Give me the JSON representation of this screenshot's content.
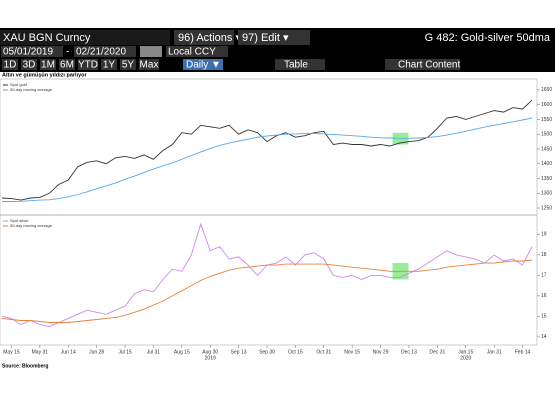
{
  "toolbar": {
    "security": "XAU BGN Curncy",
    "actions": "96) Actions ▾",
    "edit": "97) Edit ▾",
    "function": "G 482: Gold-silver 50dma",
    "start": "05/01/2019",
    "dash": "-",
    "end": "02/21/2020",
    "currency": "Local CCY",
    "periods": [
      "1D",
      "3D",
      "1M",
      "6M",
      "YTD",
      "1Y",
      "5Y",
      "Max"
    ],
    "frequency": "Daily ▼",
    "table": "Table",
    "content": "Chart Content"
  },
  "source": "Source: Bloomberg",
  "chart_data": [
    {
      "type": "line",
      "title": "Altın ve gümüşün yıldızı parlıyor",
      "ylim": [
        1240,
        1670
      ],
      "yticks": [
        1250,
        1300,
        1350,
        1400,
        1450,
        1500,
        1550,
        1600,
        1650
      ],
      "series": [
        {
          "name": "Spot gold",
          "color": "#333333",
          "values": [
            1284,
            1282,
            1277,
            1284,
            1286,
            1300,
            1330,
            1345,
            1390,
            1405,
            1410,
            1400,
            1420,
            1425,
            1418,
            1430,
            1415,
            1445,
            1465,
            1505,
            1500,
            1530,
            1525,
            1520,
            1530,
            1500,
            1515,
            1505,
            1475,
            1495,
            1505,
            1490,
            1495,
            1505,
            1510,
            1465,
            1470,
            1465,
            1465,
            1460,
            1465,
            1460,
            1470,
            1475,
            1478,
            1490,
            1520,
            1555,
            1560,
            1550,
            1560,
            1570,
            1580,
            1575,
            1590,
            1585,
            1615
          ]
        },
        {
          "name": "50-day moving average",
          "color": "#5aa9e6",
          "values": [
            1272,
            1272,
            1273,
            1275,
            1277,
            1278,
            1282,
            1288,
            1296,
            1305,
            1315,
            1325,
            1335,
            1347,
            1358,
            1370,
            1382,
            1393,
            1403,
            1415,
            1428,
            1440,
            1452,
            1462,
            1470,
            1477,
            1483,
            1490,
            1494,
            1497,
            1500,
            1501,
            1502,
            1502,
            1501,
            1499,
            1497,
            1495,
            1493,
            1490,
            1488,
            1487,
            1486,
            1486,
            1487,
            1489,
            1492,
            1497,
            1503,
            1510,
            1517,
            1524,
            1530,
            1536,
            1542,
            1548,
            1555
          ]
        }
      ]
    },
    {
      "type": "line",
      "ylim": [
        13.8,
        19.7
      ],
      "yticks": [
        14,
        15,
        16,
        17,
        18,
        19
      ],
      "categories": [
        null,
        "May 15",
        null,
        null,
        "May 31",
        null,
        null,
        "Jun 14",
        null,
        null,
        "Jun 28",
        null,
        null,
        "Jul 15",
        null,
        null,
        "Jul 31",
        null,
        null,
        "Aug 15",
        null,
        null,
        "Aug 30",
        null,
        null,
        "Sep 13",
        null,
        null,
        "Sep 30",
        null,
        null,
        "Oct 15",
        null,
        null,
        "Oct 31",
        null,
        null,
        "Nov 15",
        null,
        null,
        "Nov 29",
        null,
        null,
        "Dec 13",
        null,
        null,
        "Dec 31",
        null,
        null,
        "Jan 15",
        null,
        null,
        "Jan 31",
        null,
        null,
        "Feb 14",
        null
      ],
      "year_labels": [
        "2019",
        "2020"
      ],
      "series": [
        {
          "name": "Spot silver",
          "color": "#cc88ee",
          "values": [
            15.0,
            14.9,
            14.6,
            14.8,
            14.6,
            14.5,
            14.7,
            14.9,
            15.1,
            15.3,
            15.2,
            15.1,
            15.3,
            15.5,
            16.1,
            16.3,
            16.2,
            16.8,
            17.3,
            17.2,
            18.0,
            19.5,
            18.2,
            18.4,
            17.8,
            17.9,
            17.5,
            17.0,
            17.5,
            17.6,
            17.9,
            17.5,
            18.0,
            18.1,
            17.8,
            17.0,
            16.9,
            17.0,
            16.8,
            17.0,
            17.0,
            16.9,
            16.9,
            17.1,
            17.3,
            17.6,
            17.9,
            18.2,
            18.0,
            17.9,
            17.8,
            17.6,
            18.0,
            17.7,
            17.8,
            17.5,
            18.4
          ]
        },
        {
          "name": "50-day moving average",
          "color": "#e8823a",
          "values": [
            14.9,
            14.85,
            14.8,
            14.8,
            14.75,
            14.7,
            14.7,
            14.7,
            14.75,
            14.8,
            14.85,
            14.9,
            14.95,
            15.05,
            15.2,
            15.35,
            15.55,
            15.75,
            16.0,
            16.25,
            16.5,
            16.75,
            16.95,
            17.1,
            17.25,
            17.35,
            17.4,
            17.45,
            17.5,
            17.5,
            17.55,
            17.55,
            17.55,
            17.55,
            17.55,
            17.5,
            17.45,
            17.4,
            17.35,
            17.3,
            17.25,
            17.2,
            17.2,
            17.2,
            17.2,
            17.25,
            17.3,
            17.4,
            17.45,
            17.5,
            17.55,
            17.6,
            17.6,
            17.65,
            17.7,
            17.7,
            17.75
          ]
        }
      ]
    }
  ]
}
